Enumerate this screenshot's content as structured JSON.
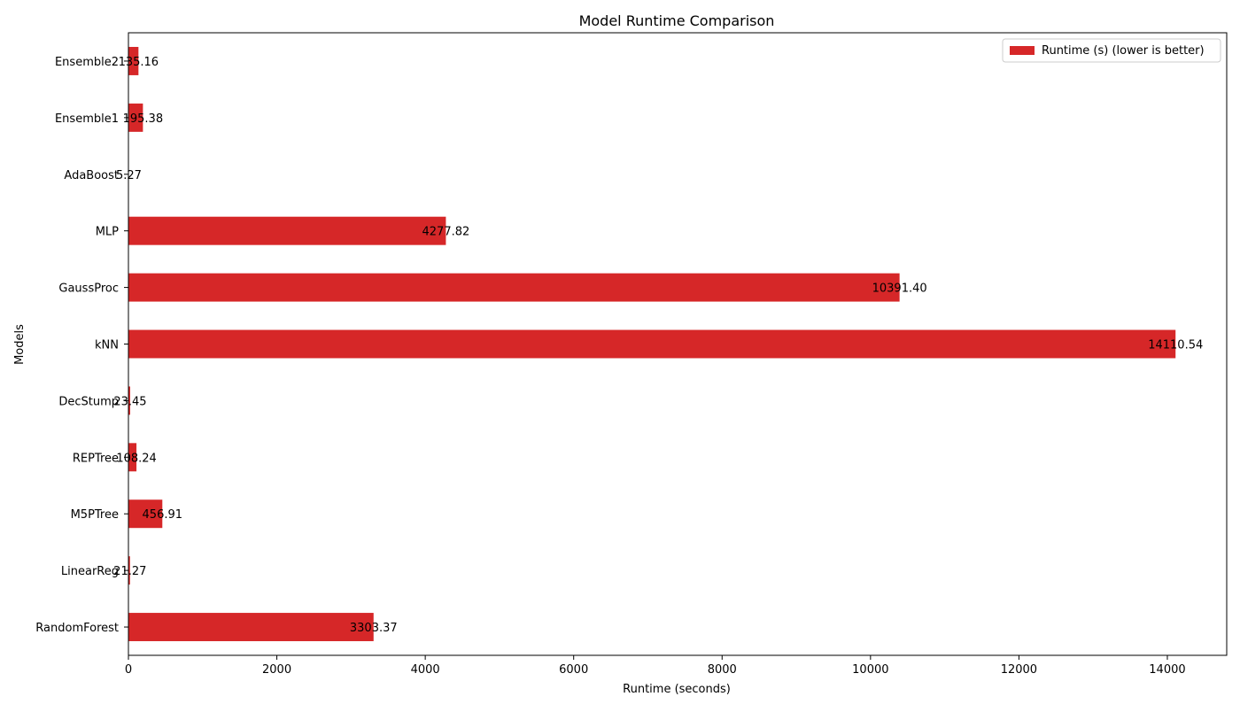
{
  "chart_data": {
    "type": "bar",
    "orientation": "horizontal",
    "title": "Model Runtime Comparison",
    "xlabel": "Runtime (seconds)",
    "ylabel": "Models",
    "xlim": [
      0,
      14800
    ],
    "xticks": [
      0,
      2000,
      4000,
      6000,
      8000,
      10000,
      12000,
      14000
    ],
    "xtick_labels": [
      "0",
      "2000",
      "4000",
      "6000",
      "8000",
      "10000",
      "12000",
      "14000"
    ],
    "categories": [
      "RandomForest",
      "LinearReg",
      "M5PTree",
      "REPTree",
      "DecStump",
      "kNN",
      "GaussProc",
      "MLP",
      "AdaBoost",
      "Ensemble1",
      "Ensemble2"
    ],
    "series": [
      {
        "name": "Runtime (s) (lower is better)",
        "color": "#d62728",
        "values": [
          3303.37,
          21.27,
          456.91,
          108.24,
          23.45,
          14110.54,
          10391.4,
          4277.82,
          5.27,
          195.38,
          135.16
        ],
        "value_labels": [
          "3303.37",
          "21.27",
          "456.91",
          "108.24",
          "23.45",
          "14110.54",
          "10391.40",
          "4277.82",
          "5.27",
          "195.38",
          "135.16"
        ]
      }
    ],
    "legend_position": "top-right",
    "grid": false
  }
}
